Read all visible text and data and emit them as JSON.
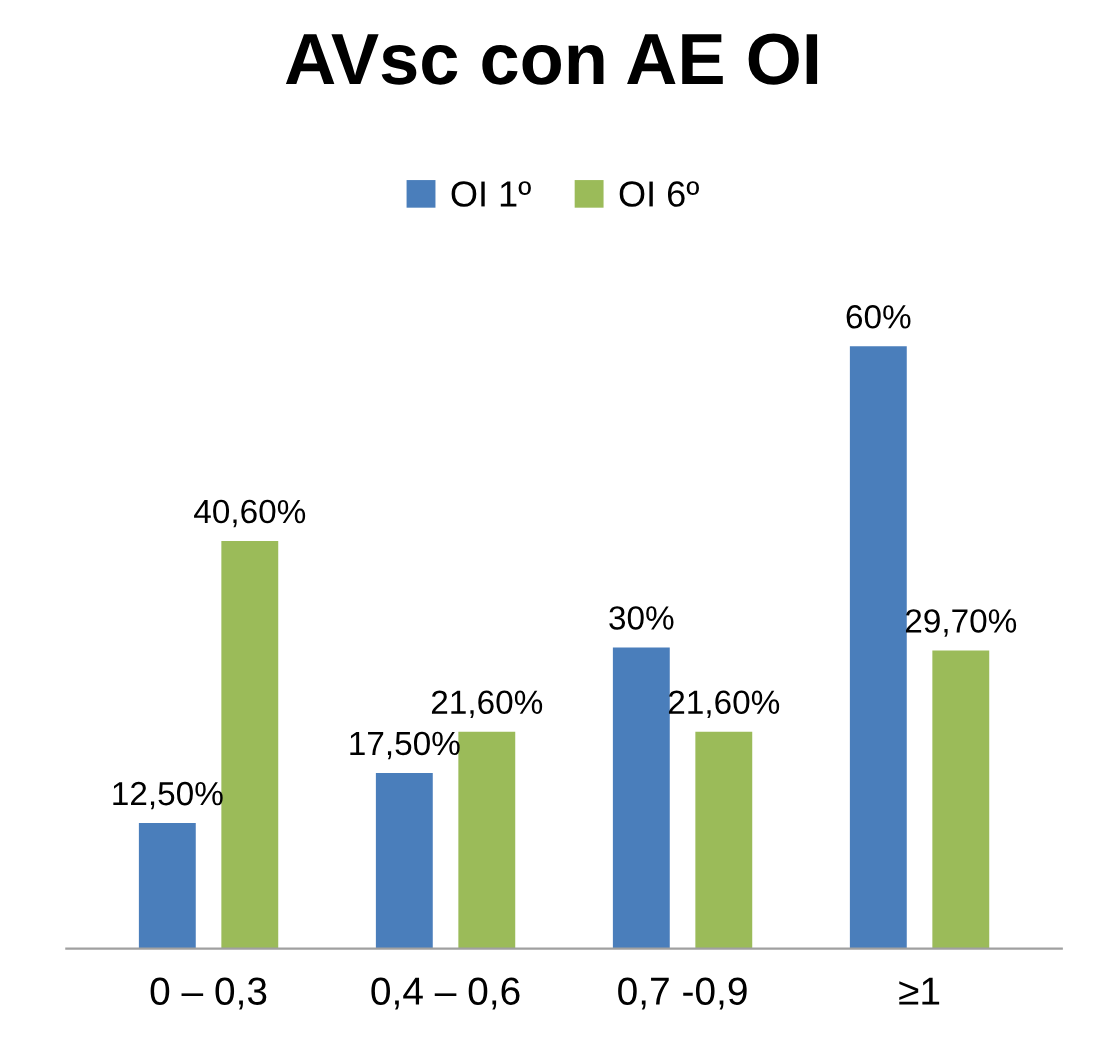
{
  "chart_data": {
    "type": "bar",
    "title": "AVsc con AE OI",
    "categories": [
      "0 – 0,3",
      "0,4 – 0,6",
      "0,7 -0,9",
      "≥1"
    ],
    "series": [
      {
        "name": "OI 1º",
        "color": "#4a7ebb",
        "values": [
          12.5,
          17.5,
          30,
          60
        ],
        "value_labels": [
          "12,50%",
          "17,50%",
          "30%",
          "60%"
        ]
      },
      {
        "name": "OI 6º",
        "color": "#9bbb59",
        "values": [
          40.6,
          21.6,
          21.6,
          29.7
        ],
        "value_labels": [
          "40,60%",
          "21,60%",
          "21,60%",
          "29,70%"
        ]
      }
    ],
    "legend": "top"
  }
}
